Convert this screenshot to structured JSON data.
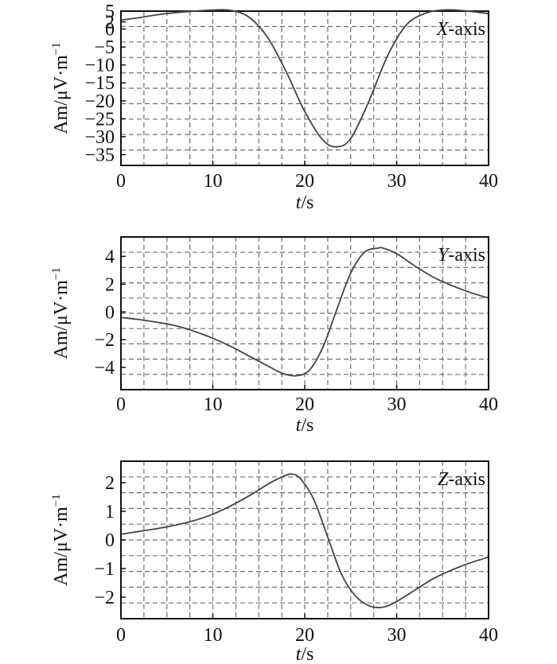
{
  "chart_data": [
    {
      "type": "line",
      "panel_label_prefix": "X",
      "panel_label_suffix": "-axis",
      "ylabel_main": "Am/μV·m",
      "ylabel_sup": "−1",
      "xlabel_var": "t",
      "xlabel_unit": "/s",
      "xlim": [
        0,
        40
      ],
      "ylim": [
        -38,
        5
      ],
      "xticks": [
        0,
        10,
        20,
        30,
        40
      ],
      "yticks": [
        5,
        2,
        0,
        -5,
        -10,
        -15,
        -20,
        -25,
        -30,
        -35
      ],
      "xtick_labels": [
        "0",
        "10",
        "20",
        "30",
        "40"
      ],
      "ytick_labels": [
        "5",
        "2",
        "0",
        "−5",
        "−10",
        "−15",
        "−20",
        "−25",
        "−30",
        "−35"
      ],
      "grid": true,
      "series": [
        {
          "x": [
            0,
            2,
            4,
            6,
            8,
            10,
            12,
            14,
            16,
            18,
            20,
            22,
            23.5,
            25,
            27,
            29,
            31,
            33,
            35,
            37,
            40
          ],
          "y": [
            2.5,
            3.2,
            4.0,
            4.6,
            5.0,
            5.3,
            5.2,
            3.2,
            -2.5,
            -12,
            -23,
            -31,
            -32.8,
            -30.5,
            -20,
            -7.5,
            1.0,
            4.3,
            5.3,
            5.2,
            4.3
          ]
        }
      ]
    },
    {
      "type": "line",
      "panel_label_prefix": "Y",
      "panel_label_suffix": "-axis",
      "ylabel_main": "Am/μV·m",
      "ylabel_sup": "−1",
      "xlabel_var": "t",
      "xlabel_unit": "/s",
      "xlim": [
        0,
        40
      ],
      "ylim": [
        -5.6,
        5.4
      ],
      "xticks": [
        0,
        10,
        20,
        30,
        40
      ],
      "yticks": [
        4,
        2,
        0,
        -2,
        -4
      ],
      "xtick_labels": [
        "0",
        "10",
        "20",
        "30",
        "40"
      ],
      "ytick_labels": [
        "4",
        "2",
        "0",
        "−2",
        "−4"
      ],
      "grid": true,
      "series": [
        {
          "x": [
            0,
            2,
            4,
            6,
            8,
            10,
            12,
            14,
            16,
            17.5,
            19,
            20.5,
            22,
            23.5,
            25,
            26.5,
            28,
            28.5,
            30,
            32,
            34,
            36,
            38,
            40
          ],
          "y": [
            -0.4,
            -0.55,
            -0.75,
            -1.0,
            -1.4,
            -1.9,
            -2.5,
            -3.2,
            -3.9,
            -4.4,
            -4.6,
            -4.2,
            -2.5,
            0.2,
            2.8,
            4.3,
            4.6,
            4.6,
            4.2,
            3.3,
            2.5,
            1.9,
            1.4,
            1.0
          ]
        }
      ]
    },
    {
      "type": "line",
      "panel_label_prefix": "Z",
      "panel_label_suffix": "-axis",
      "ylabel_main": "Am/μV·m",
      "ylabel_sup": "−1",
      "xlabel_var": "t",
      "xlabel_unit": "/s",
      "xlim": [
        0,
        40
      ],
      "ylim": [
        -2.75,
        2.75
      ],
      "xticks": [
        0,
        10,
        20,
        30,
        40
      ],
      "yticks": [
        2,
        1,
        0,
        -1,
        -2
      ],
      "xtick_labels": [
        "0",
        "10",
        "20",
        "30",
        "40"
      ],
      "ytick_labels": [
        "2",
        "1",
        "0",
        "−1",
        "−2"
      ],
      "grid": true,
      "series": [
        {
          "x": [
            0,
            2,
            4,
            6,
            8,
            10,
            12,
            14,
            16,
            17.5,
            18.5,
            19.5,
            21,
            22.5,
            24,
            25.5,
            27,
            28.5,
            30,
            32,
            34,
            36,
            38,
            40
          ],
          "y": [
            0.2,
            0.3,
            0.4,
            0.52,
            0.68,
            0.9,
            1.2,
            1.55,
            1.95,
            2.2,
            2.3,
            2.15,
            1.4,
            0.1,
            -1.2,
            -1.95,
            -2.3,
            -2.35,
            -2.15,
            -1.75,
            -1.35,
            -1.05,
            -0.8,
            -0.6
          ]
        }
      ]
    }
  ]
}
